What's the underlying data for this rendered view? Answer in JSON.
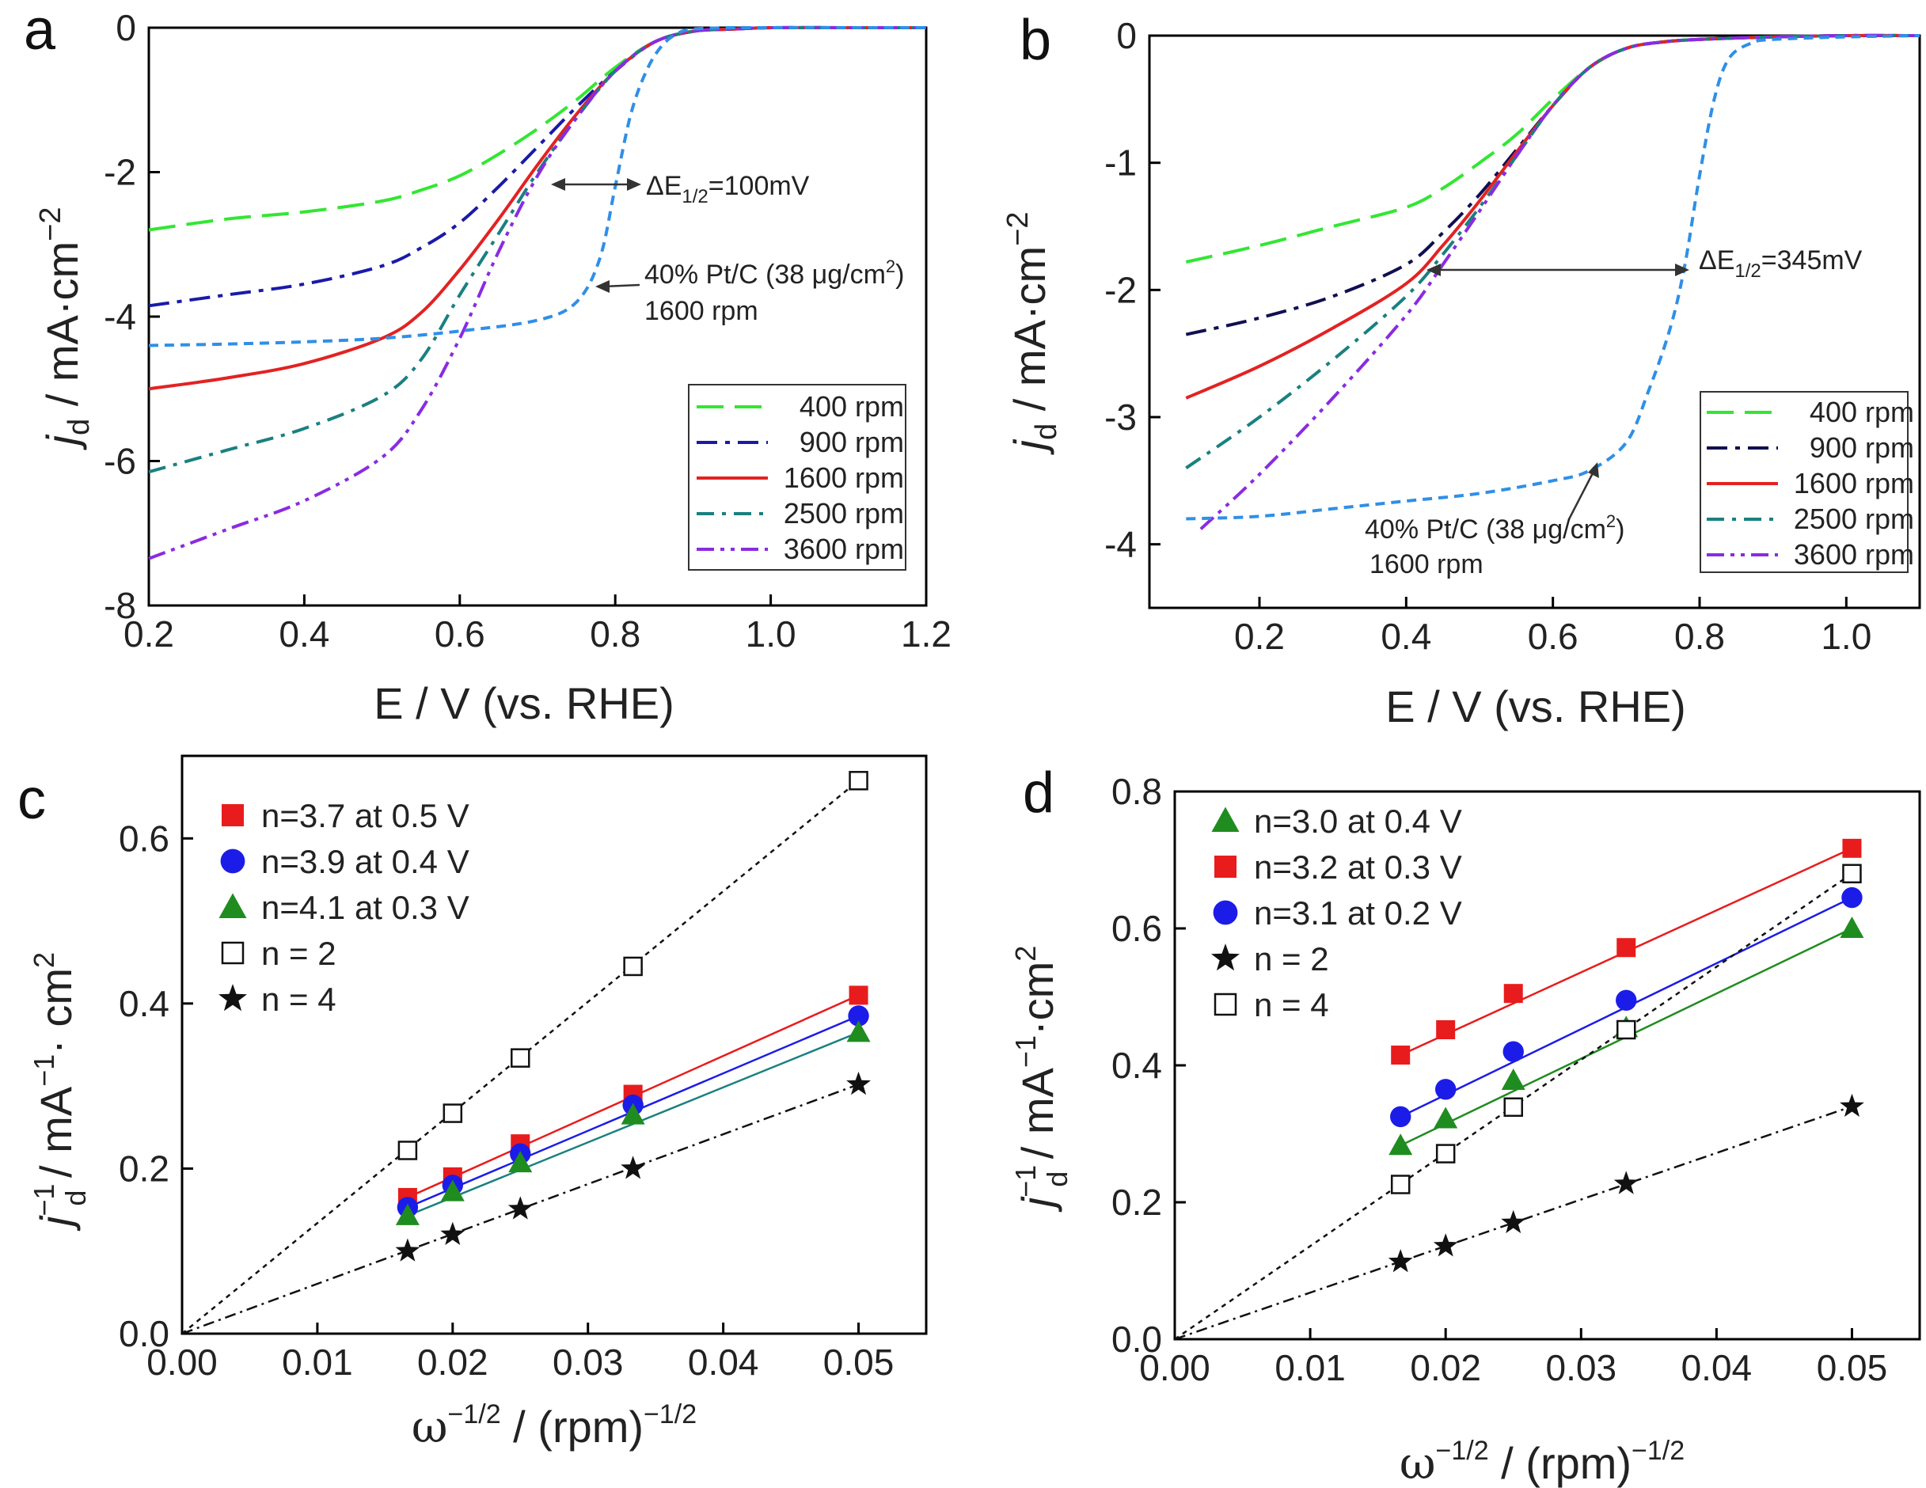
{
  "colors": {
    "rpm400": "#33e633",
    "rpm900": "#1a1aa8",
    "rpm900b": "#101050",
    "rpm1600": "#e32222",
    "rpm2500": "#1a8080",
    "rpm3600": "#8a2be2",
    "ptc": "#2f8fe8",
    "red": "#e81c1c",
    "blue": "#1c1ce8",
    "green": "#1f8c1f",
    "black": "#111111"
  },
  "chart_data": [
    {
      "panel": "a",
      "type": "line",
      "xlabel": "E / V (vs. RHE)",
      "ylabel_main": "j",
      "ylabel_sub": "d",
      "ylabel_rest": " / mA·cm",
      "ylabel_sup": "−2",
      "xlim": [
        0.2,
        1.2
      ],
      "ylim": [
        -8,
        0
      ],
      "xticks": [
        "0.2",
        "0.4",
        "0.6",
        "0.8",
        "1.0",
        "1.2"
      ],
      "yticks": [
        "0",
        "-2",
        "-4",
        "-6",
        "-8"
      ],
      "annotation_delta": "ΔE",
      "annotation_delta_sub": "1/2",
      "annotation_delta_val": "=100mV",
      "annotation_ptc_1": "40% Pt/C (38 μg/cm",
      "annotation_ptc_sup": "2",
      "annotation_ptc_2": ")",
      "annotation_rpm": "1600 rpm",
      "series": [
        {
          "name": "400 rpm",
          "color_key": "rpm400",
          "dash": "34,14",
          "x": [
            0.2,
            0.3,
            0.4,
            0.5,
            0.55,
            0.6,
            0.65,
            0.7,
            0.75,
            0.8,
            0.85,
            0.9,
            0.95,
            1.0,
            1.1,
            1.2
          ],
          "y": [
            -2.8,
            -2.65,
            -2.55,
            -2.4,
            -2.25,
            -2.05,
            -1.75,
            -1.4,
            -1.0,
            -0.55,
            -0.2,
            -0.05,
            -0.02,
            0,
            0,
            0
          ]
        },
        {
          "name": "900 rpm",
          "color_key": "rpm900",
          "dash": "26,10,6,10",
          "x": [
            0.2,
            0.3,
            0.4,
            0.5,
            0.55,
            0.6,
            0.65,
            0.7,
            0.75,
            0.8,
            0.85,
            0.9,
            0.95,
            1.0,
            1.1,
            1.2
          ],
          "y": [
            -3.85,
            -3.7,
            -3.55,
            -3.3,
            -3.05,
            -2.7,
            -2.2,
            -1.65,
            -1.1,
            -0.6,
            -0.2,
            -0.05,
            -0.02,
            0,
            0,
            0
          ]
        },
        {
          "name": "1600 rpm",
          "color_key": "rpm1600",
          "dash": "",
          "x": [
            0.2,
            0.3,
            0.4,
            0.5,
            0.55,
            0.6,
            0.65,
            0.7,
            0.75,
            0.8,
            0.85,
            0.9,
            0.95,
            1.0,
            1.1,
            1.2
          ],
          "y": [
            -5.0,
            -4.85,
            -4.65,
            -4.3,
            -3.95,
            -3.35,
            -2.65,
            -1.9,
            -1.2,
            -0.6,
            -0.2,
            -0.05,
            -0.02,
            0,
            0,
            0
          ]
        },
        {
          "name": "2500 rpm",
          "color_key": "rpm2500",
          "dash": "22,10,5,10",
          "x": [
            0.2,
            0.3,
            0.4,
            0.5,
            0.55,
            0.6,
            0.65,
            0.7,
            0.75,
            0.8,
            0.85,
            0.9,
            0.95,
            1.0,
            1.1,
            1.2
          ],
          "y": [
            -6.15,
            -5.85,
            -5.55,
            -5.1,
            -4.6,
            -3.7,
            -2.85,
            -2.0,
            -1.25,
            -0.6,
            -0.2,
            -0.05,
            -0.02,
            0,
            0,
            0
          ]
        },
        {
          "name": "3600 rpm",
          "color_key": "rpm3600",
          "dash": "22,8,5,8,5,8",
          "x": [
            0.2,
            0.3,
            0.4,
            0.5,
            0.55,
            0.6,
            0.65,
            0.7,
            0.75,
            0.8,
            0.85,
            0.9,
            0.95,
            1.0,
            1.1,
            1.2
          ],
          "y": [
            -7.35,
            -6.95,
            -6.55,
            -5.95,
            -5.3,
            -4.3,
            -3.1,
            -2.05,
            -1.25,
            -0.6,
            -0.2,
            -0.05,
            -0.02,
            0,
            0,
            0
          ]
        },
        {
          "name": "40% Pt/C 1600 rpm",
          "color_key": "ptc",
          "dash": "12,8",
          "in_legend": false,
          "x": [
            0.2,
            0.3,
            0.4,
            0.5,
            0.6,
            0.7,
            0.75,
            0.78,
            0.8,
            0.82,
            0.84,
            0.86,
            0.88,
            0.9,
            0.95,
            1.0,
            1.2
          ],
          "y": [
            -4.4,
            -4.38,
            -4.35,
            -4.3,
            -4.2,
            -4.05,
            -3.8,
            -3.2,
            -2.2,
            -1.2,
            -0.6,
            -0.25,
            -0.08,
            -0.02,
            0,
            0,
            0
          ]
        }
      ]
    },
    {
      "panel": "b",
      "type": "line",
      "xlabel": "E / V (vs. RHE)",
      "ylabel_main": "j",
      "ylabel_sub": "d",
      "ylabel_rest": " / mA·cm",
      "ylabel_sup": "−2",
      "xlim": [
        0.05,
        1.1
      ],
      "ylim": [
        -4.5,
        0
      ],
      "xticks": [
        "0.2",
        "0.4",
        "0.6",
        "0.8",
        "1.0"
      ],
      "xtick_values": [
        0.2,
        0.4,
        0.6,
        0.8,
        1.0
      ],
      "yticks": [
        "0",
        "-1",
        "-2",
        "-3",
        "-4"
      ],
      "ytick_values": [
        0,
        -1,
        -2,
        -3,
        -4
      ],
      "annotation_delta": "ΔE",
      "annotation_delta_sub": "1/2",
      "annotation_delta_val": "=345mV",
      "annotation_ptc_1": "40% Pt/C (38 μg/cm",
      "annotation_ptc_sup": "2",
      "annotation_ptc_2": ")",
      "annotation_rpm": "1600 rpm",
      "series": [
        {
          "name": "400 rpm",
          "color_key": "rpm400",
          "dash": "34,14",
          "x": [
            0.1,
            0.2,
            0.3,
            0.4,
            0.45,
            0.5,
            0.55,
            0.6,
            0.65,
            0.7,
            0.75,
            0.8,
            0.9,
            1.0,
            1.1
          ],
          "y": [
            -1.78,
            -1.65,
            -1.5,
            -1.35,
            -1.2,
            -1.0,
            -0.78,
            -0.5,
            -0.25,
            -0.1,
            -0.05,
            -0.03,
            -0.01,
            0,
            0
          ]
        },
        {
          "name": "900 rpm",
          "color_key": "rpm900b",
          "dash": "26,10,6,10",
          "x": [
            0.1,
            0.2,
            0.3,
            0.4,
            0.45,
            0.5,
            0.55,
            0.6,
            0.65,
            0.7,
            0.75,
            0.8,
            0.9,
            1.0,
            1.1
          ],
          "y": [
            -2.35,
            -2.22,
            -2.05,
            -1.8,
            -1.55,
            -1.25,
            -0.9,
            -0.55,
            -0.25,
            -0.1,
            -0.05,
            -0.03,
            -0.01,
            0,
            0
          ]
        },
        {
          "name": "1600 rpm",
          "color_key": "rpm1600",
          "dash": "",
          "x": [
            0.1,
            0.2,
            0.3,
            0.4,
            0.45,
            0.5,
            0.55,
            0.6,
            0.65,
            0.7,
            0.75,
            0.8,
            0.9,
            1.0,
            1.1
          ],
          "y": [
            -2.85,
            -2.6,
            -2.3,
            -1.95,
            -1.65,
            -1.3,
            -0.92,
            -0.55,
            -0.25,
            -0.1,
            -0.05,
            -0.03,
            -0.01,
            0,
            0
          ]
        },
        {
          "name": "2500 rpm",
          "color_key": "rpm2500",
          "dash": "22,10,5,10",
          "x": [
            0.1,
            0.2,
            0.3,
            0.4,
            0.45,
            0.5,
            0.55,
            0.6,
            0.65,
            0.7,
            0.75,
            0.8,
            0.9,
            1.0,
            1.1
          ],
          "y": [
            -3.4,
            -3.0,
            -2.55,
            -2.05,
            -1.72,
            -1.35,
            -0.95,
            -0.55,
            -0.25,
            -0.1,
            -0.05,
            -0.03,
            -0.01,
            0,
            0
          ]
        },
        {
          "name": "3600 rpm",
          "color_key": "rpm3600",
          "dash": "22,8,5,8,5,8",
          "x": [
            0.12,
            0.2,
            0.3,
            0.4,
            0.45,
            0.5,
            0.55,
            0.6,
            0.65,
            0.7,
            0.75,
            0.8,
            0.9,
            1.0,
            1.1
          ],
          "y": [
            -3.88,
            -3.45,
            -2.85,
            -2.2,
            -1.8,
            -1.38,
            -0.95,
            -0.55,
            -0.25,
            -0.1,
            -0.05,
            -0.03,
            -0.01,
            0,
            0
          ]
        },
        {
          "name": "40% Pt/C 1600 rpm",
          "color_key": "ptc",
          "dash": "12,8",
          "in_legend": false,
          "x": [
            0.1,
            0.2,
            0.3,
            0.4,
            0.5,
            0.6,
            0.65,
            0.7,
            0.73,
            0.76,
            0.78,
            0.8,
            0.82,
            0.84,
            0.87,
            0.9,
            1.0,
            1.1
          ],
          "y": [
            -3.8,
            -3.78,
            -3.72,
            -3.66,
            -3.6,
            -3.5,
            -3.42,
            -3.2,
            -2.8,
            -2.3,
            -1.8,
            -1.1,
            -0.5,
            -0.18,
            -0.06,
            -0.03,
            -0.01,
            0
          ]
        }
      ]
    },
    {
      "panel": "c",
      "type": "scatter",
      "xlabel_main": "ω",
      "xlabel_sup": "−1/2",
      "xlabel_rest": " / (rpm)",
      "xlabel_sup2": "−1/2",
      "ylabel_main": "j",
      "ylabel_sup": "−1",
      "ylabel_sub": "d",
      "ylabel_rest": " / mA",
      "ylabel_sup2": "−1",
      "ylabel_rest2": "· cm",
      "ylabel_sup3": "2",
      "xlim": [
        0,
        0.055
      ],
      "ylim": [
        0,
        0.7
      ],
      "xticks": [
        "0.00",
        "0.01",
        "0.02",
        "0.03",
        "0.04",
        "0.05"
      ],
      "xtick_values": [
        0,
        0.01,
        0.02,
        0.03,
        0.04,
        0.05
      ],
      "yticks": [
        "0.0",
        "0.2",
        "0.4",
        "0.6"
      ],
      "ytick_values": [
        0,
        0.2,
        0.4,
        0.6
      ],
      "x": [
        0.01667,
        0.02,
        0.025,
        0.03333,
        0.05
      ],
      "series": [
        {
          "name": "n=3.7 at 0.5 V",
          "marker": "square",
          "color_key": "red",
          "line": "solid",
          "values": [
            0.165,
            0.19,
            0.23,
            0.29,
            0.41
          ]
        },
        {
          "name": "n=3.9 at 0.4 V",
          "marker": "circle",
          "color_key": "blue",
          "line": "solid",
          "values": [
            0.153,
            0.18,
            0.218,
            0.277,
            0.385
          ]
        },
        {
          "name": "n=4.1 at 0.3 V",
          "marker": "triangle",
          "color_key": "green",
          "line": "solid",
          "line_color_key": "rpm2500",
          "values": [
            0.143,
            0.172,
            0.207,
            0.265,
            0.365
          ]
        },
        {
          "name": "n = 2",
          "marker": "open-square",
          "color_key": "black",
          "line": "dotted",
          "from_origin": true,
          "values": [
            0.222,
            0.267,
            0.334,
            0.445,
            0.67
          ]
        },
        {
          "name": "n = 4",
          "marker": "star",
          "color_key": "black",
          "line": "dashdot",
          "from_origin": true,
          "values": [
            0.1,
            0.12,
            0.151,
            0.2,
            0.302
          ]
        }
      ]
    },
    {
      "panel": "d",
      "type": "scatter",
      "xlabel_main": "ω",
      "xlabel_sup": "−1/2",
      "xlabel_rest": " / (rpm)",
      "xlabel_sup2": "−1/2",
      "ylabel_main": "j",
      "ylabel_sup": "−1",
      "ylabel_sub": "d",
      "ylabel_rest": " / mA",
      "ylabel_sup2": "−1",
      "ylabel_rest2": "·cm",
      "ylabel_sup3": "2",
      "xlim": [
        0,
        0.055
      ],
      "ylim": [
        0,
        0.8
      ],
      "xticks": [
        "0.00",
        "0.01",
        "0.02",
        "0.03",
        "0.04",
        "0.05"
      ],
      "xtick_values": [
        0,
        0.01,
        0.02,
        0.03,
        0.04,
        0.05
      ],
      "yticks": [
        "0.0",
        "0.2",
        "0.4",
        "0.6",
        "0.8"
      ],
      "ytick_values": [
        0,
        0.2,
        0.4,
        0.6,
        0.8
      ],
      "x": [
        0.01667,
        0.02,
        0.025,
        0.03333,
        0.05
      ],
      "series": [
        {
          "name": "n=3.0 at 0.4 V",
          "marker": "triangle",
          "color_key": "green",
          "line": "solid",
          "values": [
            0.283,
            0.322,
            0.378,
            0.455,
            0.6
          ]
        },
        {
          "name": "n=3.2 at 0.3 V",
          "marker": "square",
          "color_key": "red",
          "line": "solid",
          "values": [
            0.415,
            0.452,
            0.505,
            0.572,
            0.717
          ]
        },
        {
          "name": "n=3.1 at 0.2 V",
          "marker": "circle",
          "color_key": "blue",
          "line": "solid",
          "values": [
            0.325,
            0.365,
            0.42,
            0.495,
            0.645
          ]
        },
        {
          "name": "n = 2",
          "marker": "star",
          "color_key": "black",
          "line": "dashdot",
          "from_origin": true,
          "values": [
            0.113,
            0.136,
            0.17,
            0.227,
            0.34
          ]
        },
        {
          "name": "n = 4",
          "marker": "open-square",
          "color_key": "black",
          "line": "dotted",
          "from_origin": true,
          "values": [
            0.226,
            0.271,
            0.339,
            0.452,
            0.68
          ]
        }
      ]
    }
  ]
}
